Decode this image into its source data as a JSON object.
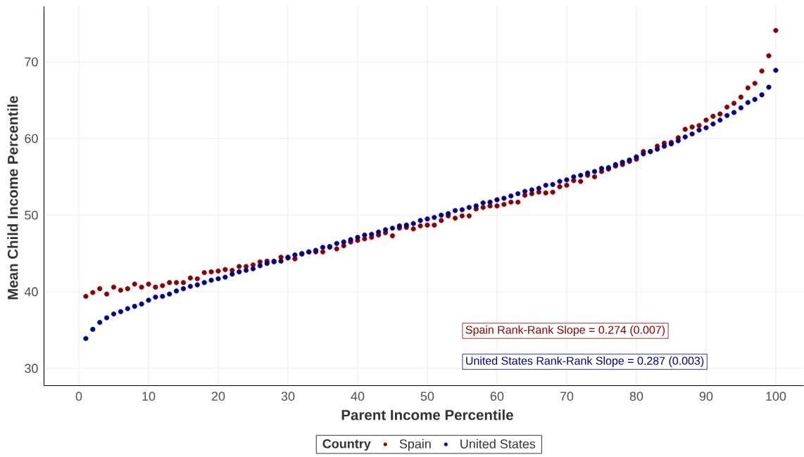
{
  "chart_data": {
    "type": "scatter",
    "xlabel": "Parent Income Percentile",
    "ylabel": "Mean Child Income Percentile",
    "legend_title": "Country",
    "x": [
      1,
      2,
      3,
      4,
      5,
      6,
      7,
      8,
      9,
      10,
      11,
      12,
      13,
      14,
      15,
      16,
      17,
      18,
      19,
      20,
      21,
      22,
      23,
      24,
      25,
      26,
      27,
      28,
      29,
      30,
      31,
      32,
      33,
      34,
      35,
      36,
      37,
      38,
      39,
      40,
      41,
      42,
      43,
      44,
      45,
      46,
      47,
      48,
      49,
      50,
      51,
      52,
      53,
      54,
      55,
      56,
      57,
      58,
      59,
      60,
      61,
      62,
      63,
      64,
      65,
      66,
      67,
      68,
      69,
      70,
      71,
      72,
      73,
      74,
      75,
      76,
      77,
      78,
      79,
      80,
      81,
      82,
      83,
      84,
      85,
      86,
      87,
      88,
      89,
      90,
      91,
      92,
      93,
      94,
      95,
      96,
      97,
      98,
      99,
      100
    ],
    "series": [
      {
        "name": "Spain",
        "color": "#8b0000",
        "values": [
          39.4,
          39.9,
          40.4,
          39.7,
          40.6,
          40.2,
          40.4,
          41.0,
          40.6,
          41.0,
          40.6,
          40.8,
          41.2,
          41.2,
          41.2,
          41.8,
          41.7,
          42.5,
          42.6,
          42.7,
          42.9,
          42.8,
          43.3,
          43.3,
          43.5,
          43.9,
          44.0,
          44.0,
          44.5,
          44.4,
          44.3,
          44.9,
          45.2,
          45.2,
          45.2,
          45.8,
          45.6,
          46.0,
          46.5,
          46.7,
          46.9,
          47.1,
          47.4,
          47.7,
          47.3,
          48.3,
          48.4,
          48.2,
          48.6,
          48.7,
          48.7,
          49.3,
          49.9,
          49.6,
          49.9,
          49.9,
          50.8,
          51.0,
          51.2,
          51.2,
          51.4,
          51.7,
          51.7,
          52.6,
          52.8,
          53.0,
          52.9,
          53.0,
          53.7,
          53.9,
          54.5,
          54.4,
          55.2,
          55.0,
          55.7,
          56.0,
          56.4,
          56.6,
          57.0,
          57.3,
          58.3,
          58.3,
          59.0,
          59.4,
          59.5,
          60.1,
          61.2,
          61.5,
          61.7,
          62.4,
          62.9,
          63.2,
          64.1,
          64.6,
          65.4,
          66.6,
          67.2,
          68.8,
          70.8,
          74.1
        ]
      },
      {
        "name": "United States",
        "color": "#00008b",
        "values": [
          33.9,
          35.1,
          36.0,
          36.6,
          37.1,
          37.4,
          37.8,
          38.1,
          38.4,
          38.9,
          39.3,
          39.4,
          39.7,
          40.1,
          40.4,
          40.7,
          40.9,
          41.2,
          41.5,
          41.7,
          41.9,
          42.3,
          42.6,
          42.8,
          43.0,
          43.4,
          43.7,
          43.9,
          44.0,
          44.5,
          44.8,
          45.0,
          45.2,
          45.4,
          45.8,
          45.9,
          46.3,
          46.5,
          46.8,
          47.1,
          47.4,
          47.5,
          47.8,
          48.1,
          48.3,
          48.6,
          48.7,
          48.9,
          49.3,
          49.5,
          49.7,
          50.0,
          50.2,
          50.6,
          50.7,
          51.0,
          51.2,
          51.6,
          51.7,
          52.0,
          52.2,
          52.5,
          52.8,
          53.1,
          53.3,
          53.5,
          53.9,
          54.0,
          54.4,
          54.6,
          55.0,
          55.2,
          55.5,
          55.7,
          56.1,
          56.2,
          56.6,
          56.9,
          57.2,
          57.6,
          58.0,
          58.3,
          58.6,
          59.0,
          59.3,
          59.7,
          60.2,
          60.6,
          61.1,
          61.4,
          61.9,
          62.4,
          63.0,
          63.4,
          64.0,
          64.7,
          65.1,
          65.7,
          66.7,
          68.9
        ]
      }
    ],
    "xlim": [
      -5,
      104
    ],
    "ylim": [
      27.75,
      77.25
    ],
    "xticks": [
      0,
      10,
      20,
      30,
      40,
      50,
      60,
      70,
      80,
      90,
      100
    ],
    "yticks": [
      30,
      40,
      50,
      60,
      70
    ],
    "grid": true,
    "legend": "bottom",
    "marker": "circle",
    "annotations": [
      "Spain Rank-Rank Slope = 0.274 (0.007)",
      "United States Rank-Rank Slope = 0.287 (0.003)"
    ]
  }
}
